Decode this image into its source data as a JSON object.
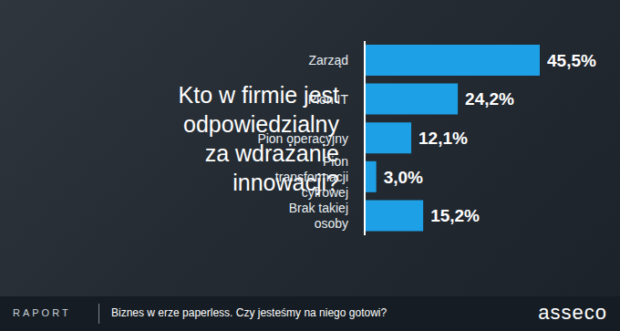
{
  "chart_data": {
    "type": "bar",
    "title": "Kto w firmie jest odpowiedzialny za wdrażanie innowacji?",
    "orientation": "horizontal",
    "categories": [
      "Zarząd",
      "Pion IT",
      "Pion operacyjny",
      "Pion transformacji cyfrowej",
      "Brak takiej osoby"
    ],
    "values": [
      45.5,
      24.2,
      12.1,
      3.0,
      15.2
    ],
    "value_labels": [
      "45,5%",
      "24,2%",
      "12,1%",
      "3,0%",
      "15,2%"
    ],
    "data_labels": true,
    "color": "#1ea0e6",
    "xlim": [
      0,
      45.5
    ],
    "tick_labels": "y",
    "grid": false
  },
  "footer": {
    "report": "RAPORT",
    "text": "Biznes w erze paperless. Czy jesteśmy na niego gotowi?",
    "logo": "asseco"
  }
}
